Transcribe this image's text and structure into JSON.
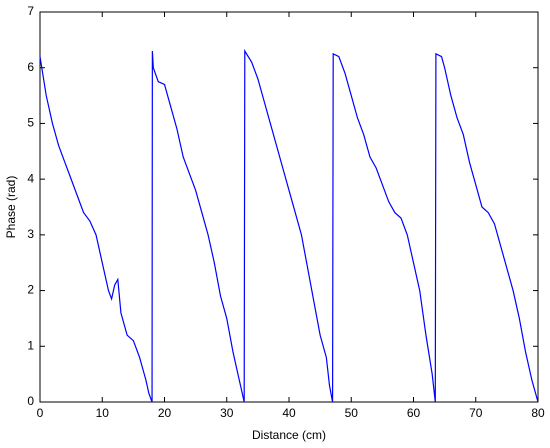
{
  "chart_data": {
    "type": "line",
    "xlabel": "Distance (cm)",
    "ylabel": "Phase (rad)",
    "x": [
      0,
      1,
      2,
      3,
      4,
      5,
      6,
      7,
      8,
      9,
      10,
      11,
      11.5,
      12,
      12.5,
      13,
      14,
      15,
      16,
      17,
      17.5,
      18,
      18.05,
      18.2,
      19,
      20,
      21,
      22,
      23,
      24,
      25,
      26,
      27,
      28,
      29,
      30,
      31,
      32,
      32.8,
      32.9,
      34,
      35,
      36,
      37,
      38,
      39,
      40,
      41,
      42,
      43,
      44,
      45,
      46,
      46.5,
      47,
      47.1,
      48,
      49,
      50,
      51,
      52,
      53,
      54,
      55,
      56,
      57,
      58,
      59,
      60,
      61,
      62,
      63,
      63.5,
      63.6,
      64.5,
      65,
      66,
      67,
      68,
      69,
      70,
      71,
      72,
      73,
      74,
      75,
      76,
      77,
      78,
      79,
      80
    ],
    "values": [
      6.2,
      5.5,
      5.0,
      4.6,
      4.3,
      4.0,
      3.7,
      3.4,
      3.25,
      3.0,
      2.5,
      2.0,
      1.85,
      2.1,
      2.2,
      1.6,
      1.2,
      1.1,
      0.8,
      0.4,
      0.15,
      0.0,
      6.3,
      6.0,
      5.75,
      5.7,
      5.3,
      4.9,
      4.4,
      4.1,
      3.8,
      3.4,
      3.0,
      2.5,
      1.9,
      1.5,
      0.9,
      0.4,
      0.0,
      6.3,
      6.1,
      5.8,
      5.4,
      5.0,
      4.6,
      4.2,
      3.8,
      3.4,
      3.0,
      2.4,
      1.8,
      1.2,
      0.8,
      0.3,
      0.0,
      6.25,
      6.2,
      5.9,
      5.5,
      5.1,
      4.8,
      4.4,
      4.2,
      3.9,
      3.6,
      3.4,
      3.3,
      3.0,
      2.5,
      2.0,
      1.2,
      0.5,
      0.0,
      6.25,
      6.2,
      6.0,
      5.5,
      5.1,
      4.8,
      4.3,
      3.9,
      3.5,
      3.4,
      3.2,
      2.8,
      2.4,
      2.0,
      1.5,
      0.9,
      0.4,
      0.0
    ],
    "color": "#0000ff",
    "xlim": [
      0,
      80
    ],
    "xticks": [
      0,
      10,
      20,
      30,
      40,
      50,
      60,
      70,
      80
    ],
    "ylim": [
      0,
      7
    ],
    "yticks": [
      0,
      1,
      2,
      3,
      4,
      5,
      6,
      7
    ],
    "grid": false
  }
}
